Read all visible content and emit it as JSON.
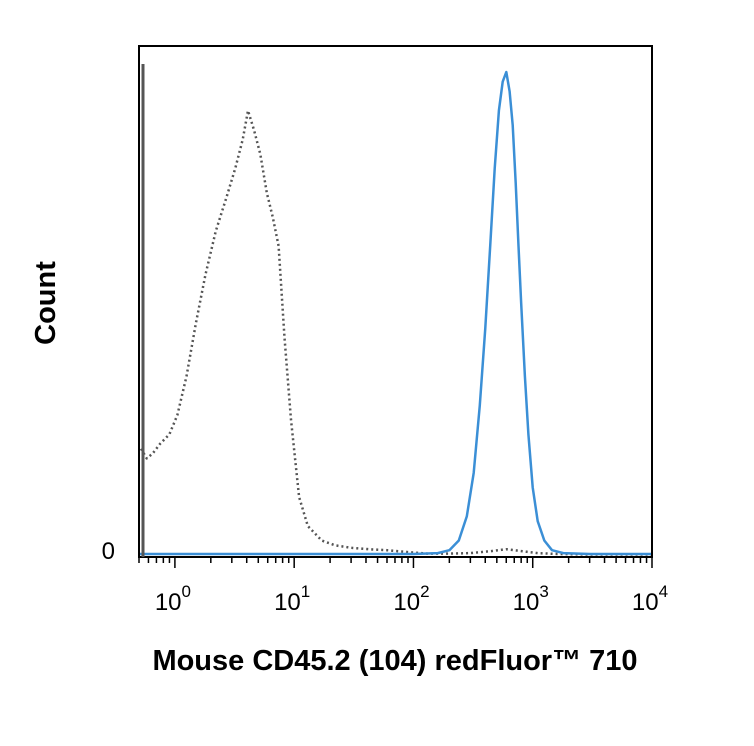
{
  "chart_data": {
    "type": "line",
    "title": "",
    "xlabel": "Mouse CD45.2 (104) redFluor™ 710",
    "ylabel": "Count",
    "x_scale": "log",
    "xlim": [
      0.5,
      10000
    ],
    "ylim": [
      0,
      100
    ],
    "y_tick_label": "0",
    "x_ticks": [
      {
        "value": 1,
        "base": "10",
        "exp": "0"
      },
      {
        "value": 10,
        "base": "10",
        "exp": "1"
      },
      {
        "value": 100,
        "base": "10",
        "exp": "2"
      },
      {
        "value": 1000,
        "base": "10",
        "exp": "3"
      },
      {
        "value": 10000,
        "base": "10",
        "exp": "4"
      }
    ],
    "grid": false,
    "legend": "none",
    "series": [
      {
        "style": "dotted",
        "color": "#555555",
        "x": [
          0.52,
          0.55,
          0.58,
          0.65,
          0.75,
          0.9,
          1.05,
          1.25,
          1.5,
          1.8,
          2.2,
          2.7,
          3.2,
          3.7,
          4.1,
          4.6,
          5.2,
          5.9,
          6.6,
          7.4,
          8.3,
          9.4,
          11,
          13,
          17,
          22,
          30,
          42,
          60,
          90,
          130,
          200,
          300,
          450,
          600,
          800,
          1100,
          1600,
          3000,
          6000,
          10000
        ],
        "y": [
          22,
          21,
          20,
          21,
          23,
          25,
          29,
          37,
          48,
          58,
          67,
          74,
          80,
          86,
          92,
          88,
          83,
          75,
          70,
          64,
          45,
          28,
          12,
          6,
          3,
          2,
          1.5,
          1.2,
          1,
          0.6,
          0.3,
          0.3,
          0.4,
          0.8,
          1.2,
          0.8,
          0.4,
          0.2,
          0.1,
          0.1,
          0.1
        ]
      },
      {
        "style": "solid",
        "color": "#3b8fd6",
        "x": [
          0.5,
          100,
          160,
          200,
          240,
          280,
          320,
          360,
          400,
          440,
          480,
          520,
          560,
          600,
          640,
          680,
          720,
          760,
          800,
          860,
          920,
          1000,
          1100,
          1250,
          1450,
          1800,
          3000,
          10000
        ],
        "y": [
          0.2,
          0.2,
          0.4,
          1,
          3,
          8,
          17,
          31,
          47,
          64,
          80,
          92,
          98,
          100,
          96,
          89,
          77,
          64,
          52,
          37,
          25,
          14,
          7,
          3,
          1,
          0.4,
          0.2,
          0.2
        ]
      }
    ]
  }
}
